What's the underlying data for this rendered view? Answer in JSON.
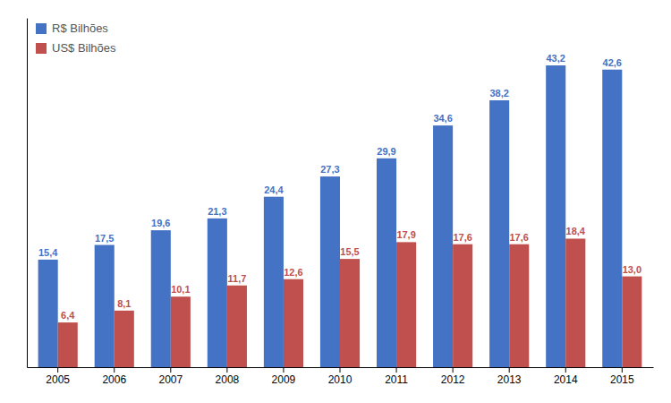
{
  "chart_data": {
    "type": "bar",
    "categories": [
      "2005",
      "2006",
      "2007",
      "2008",
      "2009",
      "2010",
      "2011",
      "2012",
      "2013",
      "2014",
      "2015"
    ],
    "series": [
      {
        "name": "R$ Bilhões",
        "color": "#4472C4",
        "values": [
          15.4,
          17.5,
          19.6,
          21.3,
          24.4,
          27.3,
          29.9,
          34.6,
          38.2,
          43.2,
          42.6
        ],
        "value_labels": [
          "15,4",
          "17,5",
          "19,6",
          "21,3",
          "24,4",
          "27,3",
          "29,9",
          "34,6",
          "38,2",
          "43,2",
          "42,6"
        ]
      },
      {
        "name": "US$ Bilhões",
        "color": "#C0504D",
        "values": [
          6.4,
          8.1,
          10.1,
          11.7,
          12.6,
          15.5,
          17.9,
          17.6,
          17.6,
          18.4,
          13.0
        ],
        "value_labels": [
          "6,4",
          "8,1",
          "10,1",
          "11,7",
          "12,6",
          "15,5",
          "17,9",
          "17,6",
          "17,6",
          "18,4",
          "13,0"
        ]
      }
    ],
    "ylim": [
      0,
      50
    ],
    "grid": false,
    "legend": "upper left",
    "data_labels": true,
    "tick_labels": "x"
  }
}
